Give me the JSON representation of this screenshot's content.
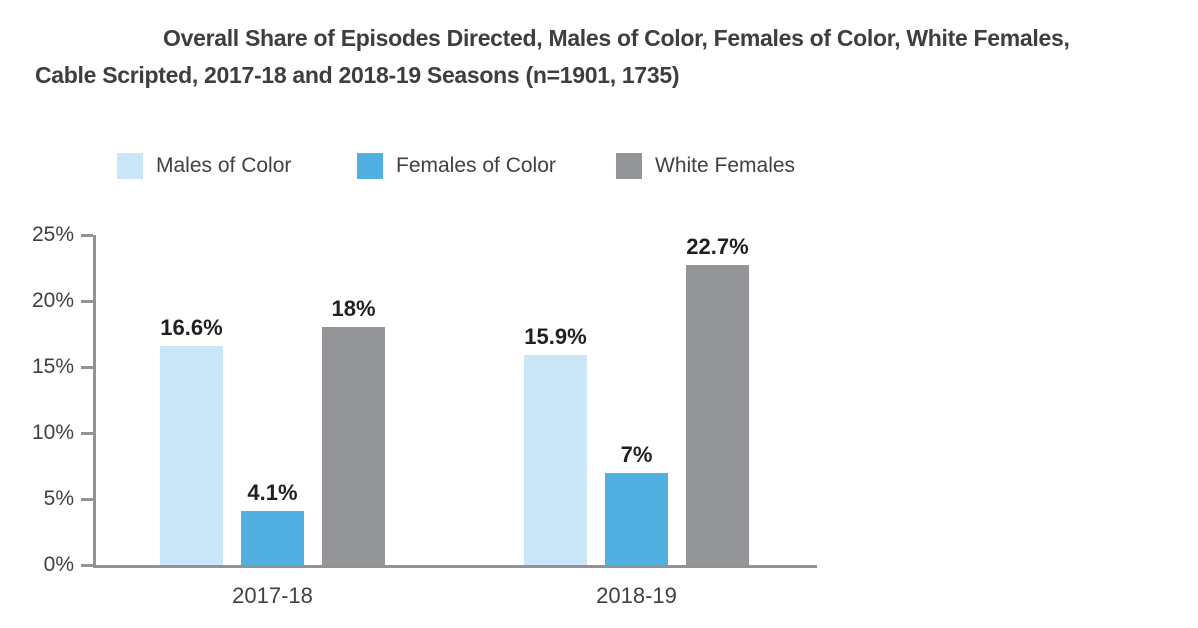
{
  "title": {
    "lines": [
      "Overall Share of Episodes Directed, Males of Color, Females of Color, White Females,",
      "Cable Scripted, 2017-18 and 2018-19 Seasons (n=1901, 1735)"
    ],
    "full": "Overall Share of Episodes Directed, Males of Color, Females of Color, White Females, Cable Scripted, 2017-18 and 2018-19 Seasons (n=1901, 1735)"
  },
  "colors": {
    "males_of_color": "#cbe6f7",
    "females_of_color": "#52afe2",
    "white_females": "#939598",
    "axis": "#919395",
    "title_text": "#3e3e40",
    "label_text": "#414042",
    "value_text": "#231f20",
    "background": "#ffffff"
  },
  "chart_data": {
    "type": "bar",
    "title": "Overall Share of Episodes Directed, Males of Color, Females of Color, White Females, Cable Scripted, 2017-18 and 2018-19 Seasons (n=1901, 1735)",
    "categories": [
      "2017-18",
      "2018-19"
    ],
    "series": [
      {
        "name": "Males of Color",
        "color": "#cbe6f7",
        "values": [
          16.6,
          15.9
        ],
        "labels": [
          "16.6%",
          "15.9%"
        ]
      },
      {
        "name": "Females of Color",
        "color": "#52afe2",
        "values": [
          4.1,
          7
        ],
        "labels": [
          "4.1%",
          "7%"
        ]
      },
      {
        "name": "White Females",
        "color": "#939598",
        "values": [
          18,
          22.7
        ],
        "labels": [
          "18%",
          "22.7%"
        ]
      }
    ],
    "xlabel": "",
    "ylabel": "",
    "ylim": [
      0,
      25
    ],
    "yticks": [
      0,
      5,
      10,
      15,
      20,
      25
    ],
    "ytick_labels": [
      "0%",
      "5%",
      "10%",
      "15%",
      "20%",
      "25%"
    ],
    "legend_position": "top",
    "grid": false
  }
}
